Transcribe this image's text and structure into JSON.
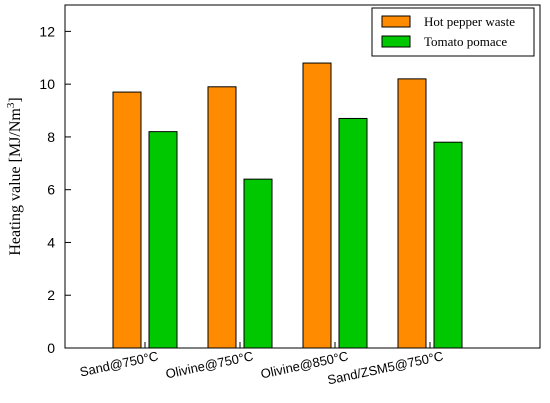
{
  "chart_data": {
    "type": "bar",
    "title": "",
    "xlabel": "",
    "ylabel": "Heating value [MJ/Nm",
    "ylabel_superscript": "3",
    "ylabel_suffix": "]",
    "categories": [
      "Sand@750°C",
      "Olivine@750°C",
      "Olivine@850°C",
      "Sand/ZSM5@750°C"
    ],
    "series": [
      {
        "name": "Hot pepper waste",
        "values": [
          9.7,
          9.9,
          10.8,
          10.2
        ],
        "color": "#ff8c00"
      },
      {
        "name": "Tomato pomace",
        "values": [
          8.2,
          6.4,
          8.7,
          7.8
        ],
        "color": "#00c800"
      }
    ],
    "ylim": [
      0,
      13
    ],
    "yticks": [
      0,
      2,
      4,
      6,
      8,
      10,
      12
    ],
    "grid": false,
    "legend_position": "top-right"
  }
}
